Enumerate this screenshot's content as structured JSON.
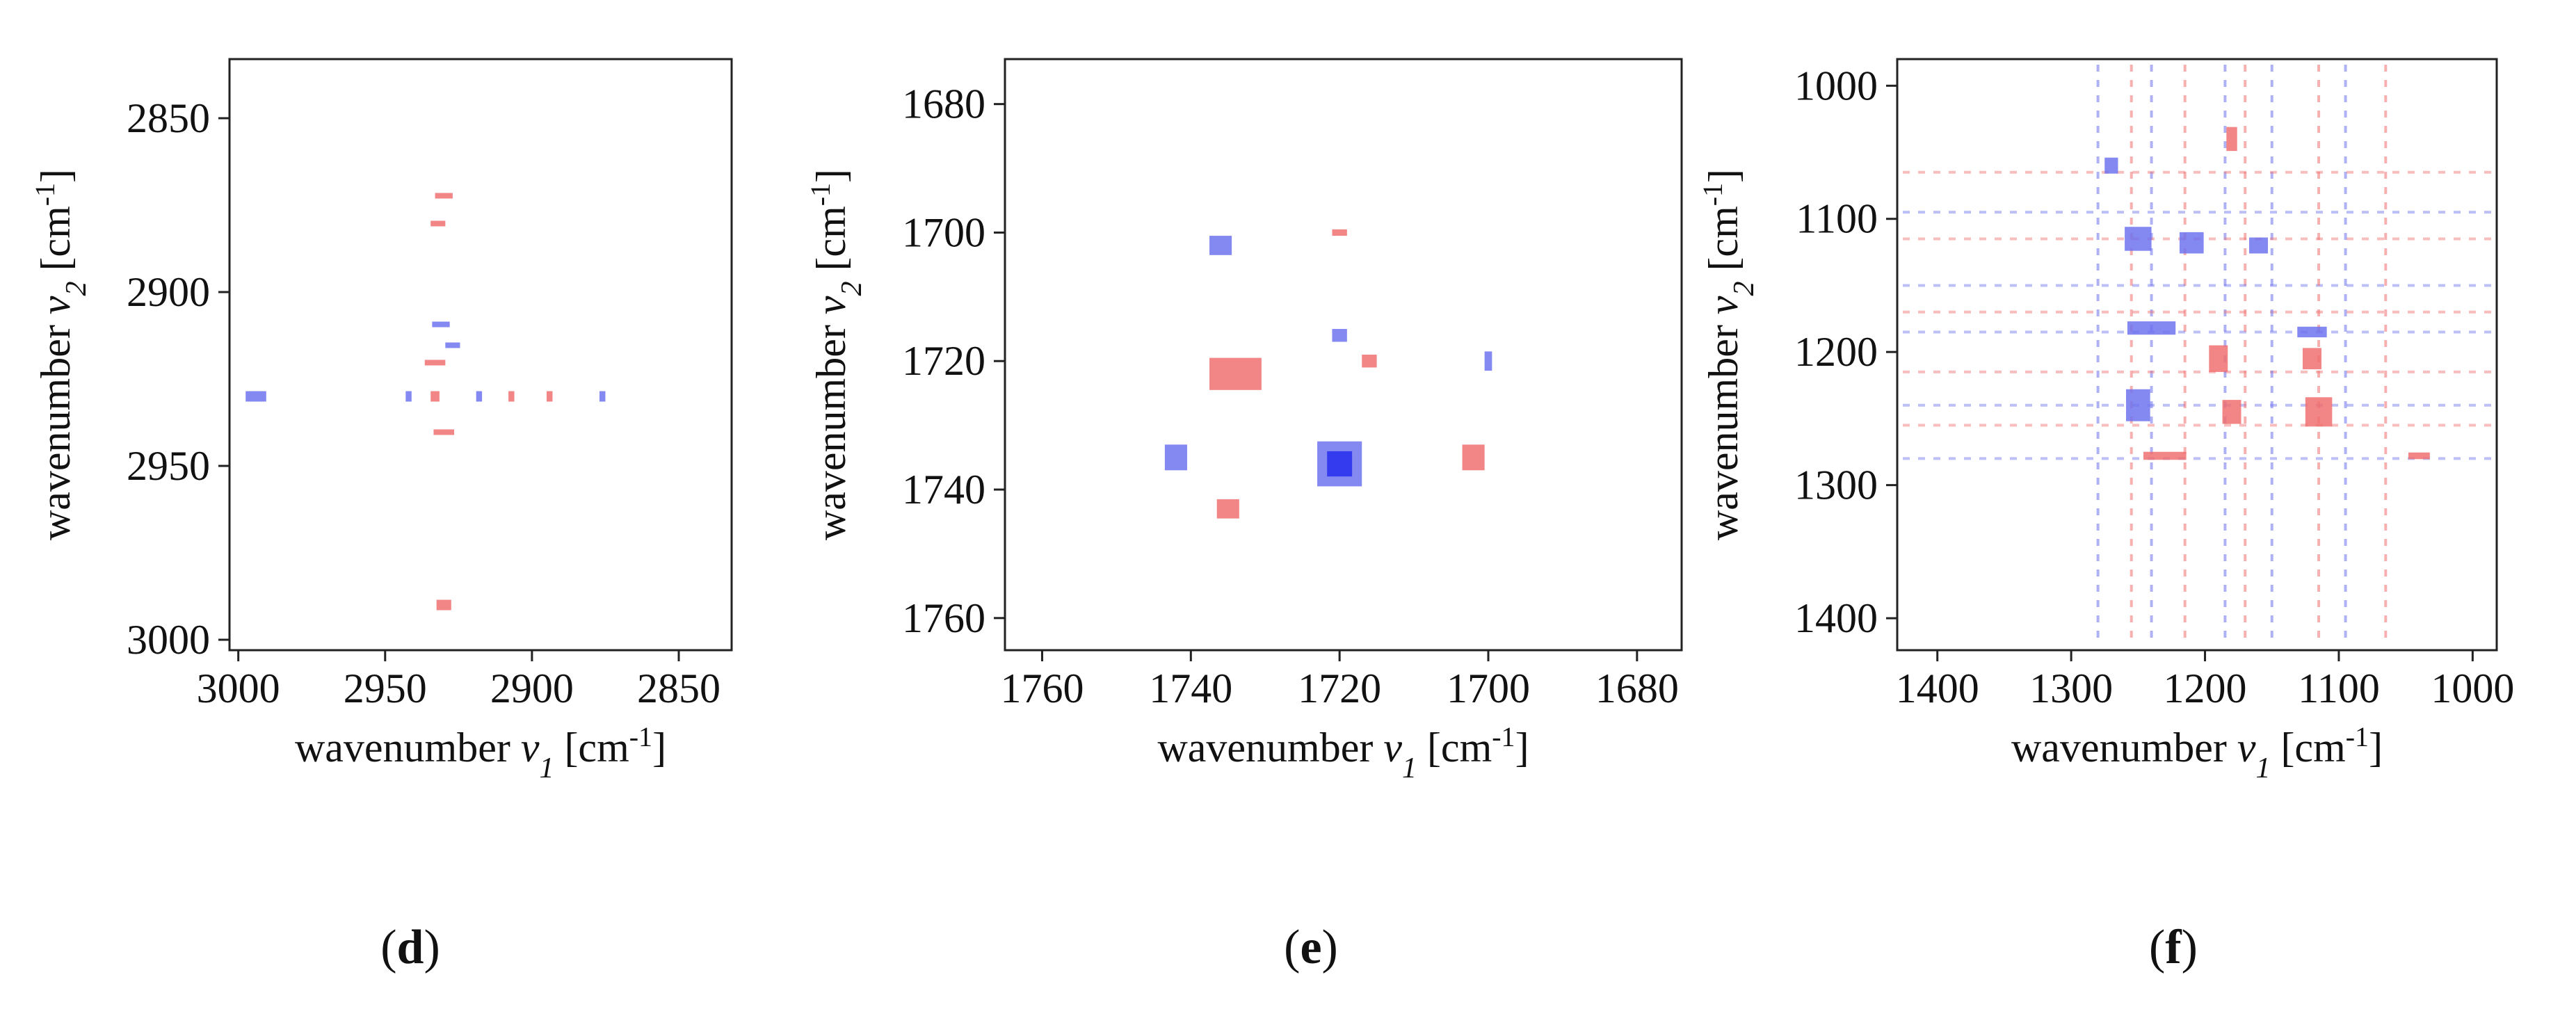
{
  "colors": {
    "positive": "#f07070",
    "negative": "#6f73ee",
    "positive_strong": "#f21818",
    "negative_strong": "#2b33ee"
  },
  "chart_data": [
    {
      "type": "heatmap",
      "panel_label": "(d)",
      "panel_letter": "d",
      "xlabel": {
        "prefix": "wavenumber ",
        "var": "v",
        "sub": "1",
        "unit_pre": " [cm",
        "sup": "-1",
        "unit_post": "]"
      },
      "ylabel": {
        "prefix": "wavenumber ",
        "var": "v",
        "sub": "2",
        "unit_pre": " [cm",
        "sup": "-1",
        "unit_post": "]"
      },
      "xlim": [
        3003,
        2832
      ],
      "ylim": [
        2833,
        3003
      ],
      "xticks": [
        3000,
        2950,
        2900,
        2850
      ],
      "yticks": [
        2850,
        2900,
        2950,
        3000
      ],
      "grid": false,
      "peaks": [
        {
          "x": 2930,
          "y": 2872,
          "sign": "positive",
          "w": 6,
          "h": 1
        },
        {
          "x": 2932,
          "y": 2880,
          "sign": "positive",
          "w": 5,
          "h": 1
        },
        {
          "x": 2931,
          "y": 2909,
          "sign": "negative",
          "w": 6,
          "h": 1
        },
        {
          "x": 2927,
          "y": 2915,
          "sign": "negative",
          "w": 5,
          "h": 1
        },
        {
          "x": 2933,
          "y": 2920,
          "sign": "positive",
          "w": 7,
          "h": 1
        },
        {
          "x": 2994,
          "y": 2930,
          "sign": "negative",
          "w": 7,
          "h": 3
        },
        {
          "x": 2942,
          "y": 2930,
          "sign": "negative",
          "w": 2,
          "h": 3
        },
        {
          "x": 2933,
          "y": 2930,
          "sign": "positive",
          "w": 3,
          "h": 3
        },
        {
          "x": 2918,
          "y": 2930,
          "sign": "negative",
          "w": 2,
          "h": 3
        },
        {
          "x": 2907,
          "y": 2930,
          "sign": "positive",
          "w": 2,
          "h": 3
        },
        {
          "x": 2894,
          "y": 2930,
          "sign": "positive",
          "w": 2,
          "h": 3
        },
        {
          "x": 2876,
          "y": 2930,
          "sign": "negative",
          "w": 2,
          "h": 3
        },
        {
          "x": 2930,
          "y": 2940,
          "sign": "positive",
          "w": 7,
          "h": 1
        },
        {
          "x": 2930,
          "y": 2990,
          "sign": "positive",
          "w": 5,
          "h": 3
        }
      ]
    },
    {
      "type": "heatmap",
      "panel_label": "(e)",
      "panel_letter": "e",
      "xlabel": {
        "prefix": "wavenumber ",
        "var": "v",
        "sub": "1",
        "unit_pre": " [cm",
        "sup": "-1",
        "unit_post": "]"
      },
      "ylabel": {
        "prefix": "wavenumber ",
        "var": "v",
        "sub": "2",
        "unit_pre": " [cm",
        "sup": "-1",
        "unit_post": "]"
      },
      "xlim": [
        1765,
        1674
      ],
      "ylim": [
        1673,
        1765
      ],
      "xticks": [
        1760,
        1740,
        1720,
        1700,
        1680
      ],
      "yticks": [
        1680,
        1700,
        1720,
        1740,
        1760
      ],
      "grid": false,
      "peaks": [
        {
          "x": 1734,
          "y": 1722,
          "sign": "positive",
          "w": 7,
          "h": 5
        },
        {
          "x": 1720,
          "y": 1736,
          "sign": "negative",
          "w": 6,
          "h": 7
        },
        {
          "x": 1736,
          "y": 1702,
          "sign": "negative",
          "w": 3,
          "h": 3
        },
        {
          "x": 1720,
          "y": 1700,
          "sign": "positive",
          "w": 2,
          "h": 1
        },
        {
          "x": 1720,
          "y": 1716,
          "sign": "negative",
          "w": 2,
          "h": 2
        },
        {
          "x": 1716,
          "y": 1720,
          "sign": "positive",
          "w": 2,
          "h": 2
        },
        {
          "x": 1700,
          "y": 1720,
          "sign": "negative",
          "w": 1,
          "h": 3
        },
        {
          "x": 1742,
          "y": 1735,
          "sign": "negative",
          "w": 3,
          "h": 4
        },
        {
          "x": 1735,
          "y": 1743,
          "sign": "positive",
          "w": 3,
          "h": 3
        },
        {
          "x": 1702,
          "y": 1735,
          "sign": "positive",
          "w": 3,
          "h": 4
        }
      ]
    },
    {
      "type": "heatmap",
      "panel_label": "(f)",
      "panel_letter": "f",
      "xlabel": {
        "prefix": "wavenumber ",
        "var": "v",
        "sub": "1",
        "unit_pre": " [cm",
        "sup": "-1",
        "unit_post": "]"
      },
      "ylabel": {
        "prefix": "wavenumber ",
        "var": "v",
        "sub": "2",
        "unit_pre": " [cm",
        "sup": "-1",
        "unit_post": "]"
      },
      "xlim": [
        1430,
        982
      ],
      "ylim": [
        980,
        1424
      ],
      "xticks": [
        1400,
        1300,
        1200,
        1100,
        1000
      ],
      "yticks": [
        1000,
        1100,
        1200,
        1300,
        1400
      ],
      "grid": false,
      "cross_peak_positions": [
        1280,
        1255,
        1240,
        1215,
        1185,
        1170,
        1150,
        1115,
        1095,
        1065
      ],
      "peaks": [
        {
          "x": 1250,
          "y": 1115,
          "sign": "negative",
          "w": 20,
          "h": 18
        },
        {
          "x": 1210,
          "y": 1118,
          "sign": "negative",
          "w": 18,
          "h": 16
        },
        {
          "x": 1160,
          "y": 1120,
          "sign": "negative",
          "w": 14,
          "h": 12
        },
        {
          "x": 1240,
          "y": 1182,
          "sign": "negative",
          "w": 36,
          "h": 10
        },
        {
          "x": 1120,
          "y": 1185,
          "sign": "negative",
          "w": 22,
          "h": 8
        },
        {
          "x": 1250,
          "y": 1240,
          "sign": "negative",
          "w": 18,
          "h": 24
        },
        {
          "x": 1190,
          "y": 1205,
          "sign": "positive",
          "w": 14,
          "h": 20
        },
        {
          "x": 1120,
          "y": 1205,
          "sign": "positive",
          "w": 14,
          "h": 16
        },
        {
          "x": 1115,
          "y": 1245,
          "sign": "positive",
          "w": 20,
          "h": 22
        },
        {
          "x": 1180,
          "y": 1245,
          "sign": "positive",
          "w": 14,
          "h": 18
        },
        {
          "x": 1230,
          "y": 1278,
          "sign": "positive",
          "w": 32,
          "h": 6
        },
        {
          "x": 1040,
          "y": 1278,
          "sign": "positive",
          "w": 16,
          "h": 5
        },
        {
          "x": 1270,
          "y": 1060,
          "sign": "negative",
          "w": 10,
          "h": 12
        },
        {
          "x": 1180,
          "y": 1040,
          "sign": "positive",
          "w": 8,
          "h": 18
        }
      ]
    }
  ]
}
